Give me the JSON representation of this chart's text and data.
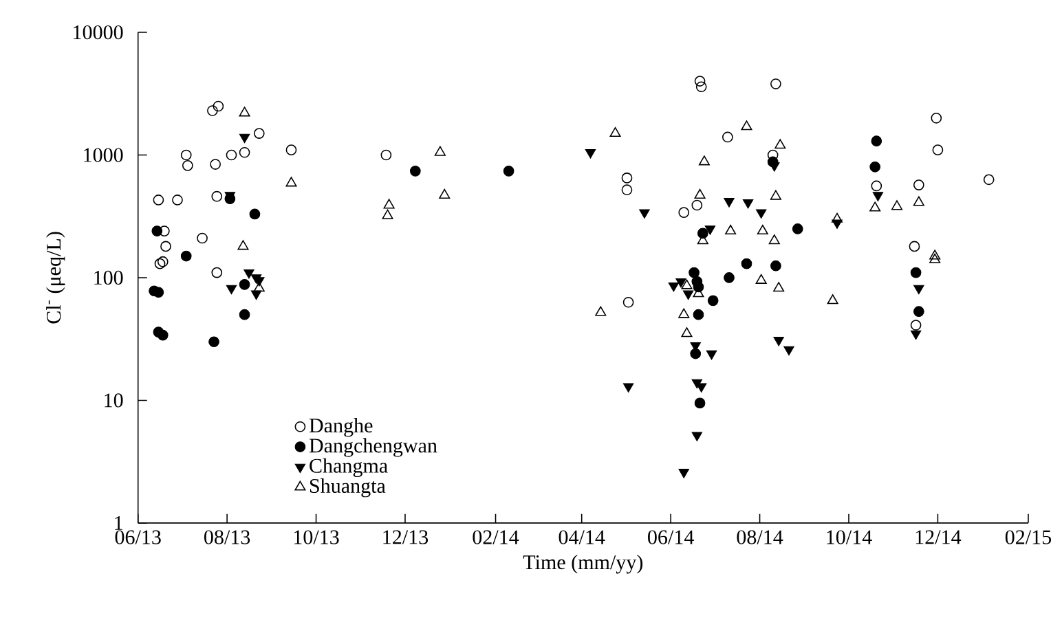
{
  "chart_data": {
    "type": "scatter",
    "xlabel": "Time (mm/yy)",
    "ylabel": "Cl$^{-}$ (μeq/L)",
    "log": "y",
    "legend": "bottom left",
    "xlim": [
      "2013-06-01",
      "2015-02-01"
    ],
    "ylim": [
      1,
      10000
    ],
    "yticks": [
      1,
      10,
      100,
      1000,
      10000
    ],
    "xticks": [
      {
        "value": "2013-06-01",
        "label": "06/13"
      },
      {
        "value": "2013-08-01",
        "label": "08/13"
      },
      {
        "value": "2013-10-01",
        "label": "10/13"
      },
      {
        "value": "2013-12-01",
        "label": "12/13"
      },
      {
        "value": "2014-02-01",
        "label": "02/14"
      },
      {
        "value": "2014-04-01",
        "label": "04/14"
      },
      {
        "value": "2014-06-01",
        "label": "06/14"
      },
      {
        "value": "2014-08-01",
        "label": "08/14"
      },
      {
        "value": "2014-10-01",
        "label": "10/14"
      },
      {
        "value": "2014-12-01",
        "label": "12/14"
      },
      {
        "value": "2015-02-01",
        "label": "02/15"
      }
    ],
    "series": [
      {
        "name": "Danghe",
        "color": "#000000",
        "marker": "circle_open",
        "x": [
          "2013-06-15",
          "2013-06-28",
          "2013-07-04",
          "2013-07-05",
          "2013-07-22",
          "2013-07-26",
          "2013-07-24",
          "2013-07-25",
          "2013-08-04",
          "2013-08-13",
          "2013-08-23",
          "2013-09-14",
          "2013-06-19",
          "2013-06-20",
          "2013-06-18",
          "2013-06-16",
          "2013-07-15",
          "2013-07-25",
          "2013-11-18",
          "2014-05-02",
          "2014-05-02",
          "2014-05-03",
          "2014-07-10",
          "2014-08-10",
          "2014-06-10",
          "2014-06-19",
          "2014-11-30",
          "2014-12-01",
          "2014-10-20",
          "2014-11-18",
          "2015-01-05",
          "2014-11-15",
          "2014-11-16",
          "2014-06-21",
          "2014-06-22",
          "2014-08-12"
        ],
        "values": [
          430,
          430,
          1000,
          820,
          2300,
          2500,
          840,
          460,
          1000,
          1050,
          1500,
          1100,
          240,
          180,
          135,
          130,
          210,
          110,
          1000,
          650,
          520,
          63,
          1400,
          1000,
          340,
          390,
          2000,
          1100,
          560,
          570,
          630,
          180,
          41,
          4000,
          3600,
          3800
        ]
      },
      {
        "name": "Dangchengwan",
        "color": "#000000",
        "marker": "circle",
        "x": [
          "2013-06-14",
          "2013-07-04",
          "2013-08-03",
          "2013-08-20",
          "2013-06-12",
          "2013-06-15",
          "2013-06-15",
          "2013-06-18",
          "2013-07-23",
          "2013-08-13",
          "2013-08-13",
          "2013-12-08",
          "2014-02-10",
          "2014-06-23",
          "2014-06-17",
          "2014-06-19",
          "2014-06-20",
          "2014-06-30",
          "2014-06-20",
          "2014-06-18",
          "2014-06-21",
          "2014-07-11",
          "2014-07-23",
          "2014-08-12",
          "2014-08-27",
          "2014-10-20",
          "2014-10-19",
          "2014-11-16",
          "2014-11-18",
          "2014-08-10"
        ],
        "values": [
          240,
          150,
          440,
          330,
          78,
          76,
          36,
          34,
          30,
          88,
          50,
          740,
          740,
          230,
          110,
          93,
          84,
          65,
          50,
          24,
          9.5,
          100,
          130,
          125,
          250,
          1300,
          800,
          110,
          53,
          880
        ]
      },
      {
        "name": "Changma",
        "color": "#000000",
        "marker": "triangle_down",
        "x": [
          "2013-08-03",
          "2013-08-13",
          "2013-08-04",
          "2013-08-16",
          "2013-08-21",
          "2013-08-23",
          "2013-08-21",
          "2014-04-07",
          "2014-05-14",
          "2014-05-03",
          "2014-07-11",
          "2014-07-24",
          "2014-08-02",
          "2014-08-11",
          "2014-06-28",
          "2014-06-03",
          "2014-06-08",
          "2014-06-13",
          "2014-06-18",
          "2014-06-29",
          "2014-06-19",
          "2014-06-22",
          "2014-06-19",
          "2014-06-10",
          "2014-08-14",
          "2014-08-21",
          "2014-10-21",
          "2014-11-18",
          "2014-11-16",
          "2014-09-23"
        ],
        "values": [
          470,
          1400,
          82,
          110,
          100,
          95,
          74,
          1050,
          340,
          13,
          420,
          410,
          340,
          820,
          250,
          86,
          93,
          74,
          28,
          24,
          14,
          13,
          5.2,
          2.6,
          31,
          26,
          470,
          82,
          35,
          280
        ]
      },
      {
        "name": "Shuangta",
        "color": "#000000",
        "marker": "triangle_open",
        "x": [
          "2013-08-13",
          "2013-09-14",
          "2013-08-12",
          "2013-08-23",
          "2013-11-20",
          "2013-11-19",
          "2013-12-25",
          "2013-12-28",
          "2014-04-24",
          "2014-04-14",
          "2014-07-23",
          "2014-08-15",
          "2014-06-24",
          "2014-06-21",
          "2014-06-23",
          "2014-07-12",
          "2014-08-03",
          "2014-08-11",
          "2014-08-12",
          "2014-08-02",
          "2014-08-14",
          "2014-06-12",
          "2014-06-20",
          "2014-06-10",
          "2014-06-12",
          "2014-09-20",
          "2014-10-19",
          "2014-11-03",
          "2014-11-18",
          "2014-11-29",
          "2014-11-29",
          "2014-09-23"
        ],
        "values": [
          2200,
          590,
          180,
          82,
          390,
          320,
          1050,
          470,
          1500,
          52,
          1700,
          1200,
          880,
          470,
          200,
          240,
          240,
          200,
          460,
          95,
          82,
          86,
          74,
          50,
          35,
          65,
          370,
          380,
          410,
          150,
          140,
          300
        ]
      }
    ]
  }
}
